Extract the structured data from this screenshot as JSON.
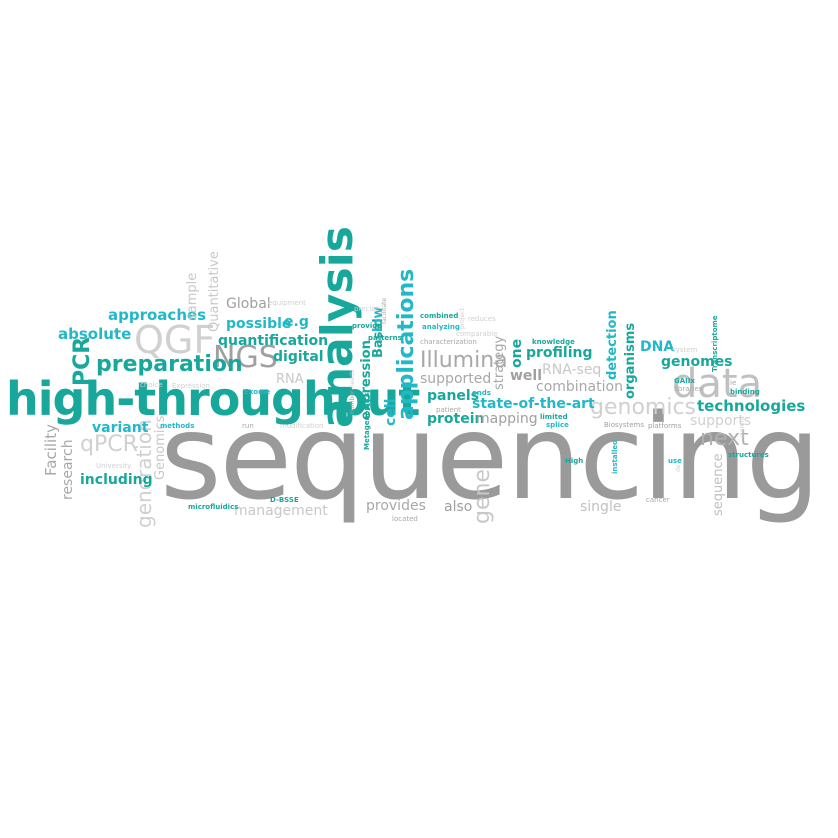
{
  "palette": {
    "teal": "#18a89b",
    "cyan": "#22b8c8",
    "gray": "#9a9a9a",
    "light_gray": "#c8c8c8",
    "faint_gray": "#d8d8d8"
  },
  "words": {
    "sequencing": "sequencing",
    "high_throughput": "high-throughput",
    "analysis": "analysis",
    "data": "data",
    "QGF": "QGF",
    "NGS": "NGS",
    "preparation": "preparation",
    "applications": "applications",
    "Illumina": "Illumina",
    "genomics": "genomics",
    "technologies": "technologies",
    "next": "next",
    "gene": "gene",
    "generation": "generation",
    "qPCR": "qPCR",
    "PCR": "PCR",
    "approaches": "approaches",
    "absolute": "absolute",
    "possible": "possible",
    "eg": "e.g",
    "quantification": "quantification",
    "digital": "digital",
    "Global": "Global",
    "Quantitative": "Quantitative",
    "sample": "sample",
    "RNA": "RNA",
    "variant": "variant",
    "including": "including",
    "Facility": "Facility",
    "research": "research",
    "Genomics": "Genomics",
    "management": "management",
    "provides": "provides",
    "also": "also",
    "single": "single",
    "sequence": "sequence",
    "supports": "supports",
    "genomes": "genomes",
    "DNA": "DNA",
    "organisms": "organisms",
    "detection": "detection",
    "profiling": "profiling",
    "one": "one",
    "well": "well",
    "combination": "combination",
    "RNA_seq": "RNA-seq",
    "state_of_the_art": "state-of-the-art",
    "panels": "panels",
    "protein": "protein",
    "mapping": "mapping",
    "supported": "supported",
    "strategy": "strategy",
    "cell": "cell",
    "Basel": "Basel",
    "low": "low",
    "expression": "expression",
    "Metagenomics": "Metagenomics",
    "Exome": "Exome",
    "Expression": "Expression",
    "choice": "choice",
    "methods": "methods",
    "run": "run",
    "modification": "modification",
    "University": "University",
    "microfluidics": "microfluidics",
    "D_BSSE": "D-BSSE",
    "located": "located",
    "High": "High",
    "installed": "installed",
    "splice": "splice",
    "limited": "limited",
    "ends": "ends",
    "patient": "patient",
    "Biosystems": "Biosystems",
    "platforms": "platforms",
    "cancer": "cancer",
    "use": "use",
    "structures": "structures",
    "GAIIx": "GAIIx",
    "libraries": "libraries",
    "binding": "binding",
    "ie": "ie",
    "Transcriptome": "Transcriptome",
    "system": "system",
    "knowledge": "knowledge",
    "comparable": "comparable",
    "characterization": "characterization",
    "reduces": "reduces",
    "combined": "combined",
    "analyzing": "analyzing",
    "patterns": "patterns",
    "provide": "provide",
    "precise": "precise",
    "facilitate": "facilitate",
    "equipment": "equipment",
    "number": "number",
    "needs": "needs",
    "project": "project",
    "current": "current",
    "de": "de"
  }
}
